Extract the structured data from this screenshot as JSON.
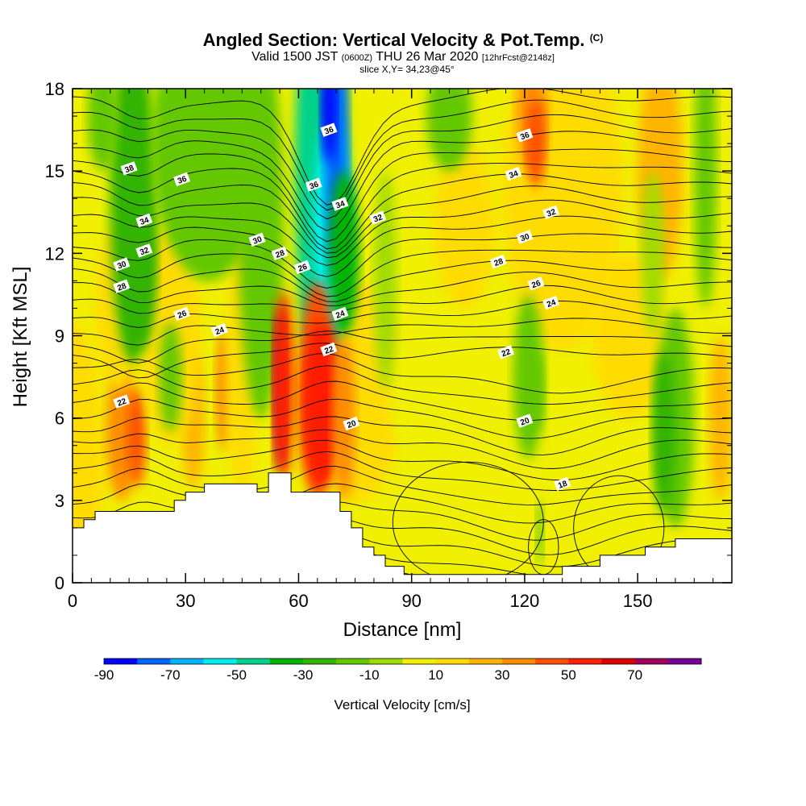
{
  "title": {
    "main": "Angled Section: Vertical Velocity & Pot.Temp.",
    "copyright": "(C)",
    "line2_a": "Valid 1500 JST",
    "line2_b": "(0600Z)",
    "line2_c": "THU 26 Mar 2020",
    "line2_d": "[12hrFcst@2148z]",
    "line3": "slice X,Y= 34,23@45°"
  },
  "chart_data": {
    "type": "heatmap",
    "title": "Angled Section: Vertical Velocity & Pot.Temp.",
    "xlabel": "Distance [nm]",
    "ylabel": "Height [Kft MSL]",
    "xlim": [
      0,
      175
    ],
    "ylim": [
      0,
      18
    ],
    "x_ticks": [
      0,
      30,
      60,
      90,
      120,
      150
    ],
    "y_ticks": [
      0,
      3,
      6,
      9,
      12,
      15,
      18
    ],
    "colorbar": {
      "title": "Vertical Velocity [cm/s]",
      "tick_labels": [
        "-90",
        "-70",
        "-50",
        "-30",
        "-10",
        "10",
        "30",
        "50",
        "70"
      ],
      "levels": [
        -90,
        -80,
        -70,
        -60,
        -50,
        -40,
        -30,
        -20,
        -10,
        0,
        10,
        20,
        30,
        40,
        50,
        60,
        70,
        80
      ],
      "colors": [
        "#0000ff",
        "#0064ff",
        "#00b4ff",
        "#00f0f0",
        "#00d28c",
        "#00b400",
        "#32b400",
        "#64c800",
        "#a0dc00",
        "#f0f000",
        "#ffdc00",
        "#ffb400",
        "#ff8c00",
        "#ff5000",
        "#ff1e00",
        "#dc0000",
        "#a0005a",
        "#780096"
      ]
    },
    "terrain_kft": [
      [
        0,
        2.0
      ],
      [
        3,
        2.0
      ],
      [
        3,
        2.3
      ],
      [
        6,
        2.3
      ],
      [
        6,
        2.6
      ],
      [
        27,
        2.6
      ],
      [
        27,
        3.0
      ],
      [
        30,
        3.0
      ],
      [
        30,
        3.3
      ],
      [
        35,
        3.3
      ],
      [
        35,
        3.6
      ],
      [
        49,
        3.6
      ],
      [
        49,
        3.3
      ],
      [
        52,
        3.3
      ],
      [
        52,
        4.0
      ],
      [
        58,
        4.0
      ],
      [
        58,
        3.3
      ],
      [
        71,
        3.3
      ],
      [
        71,
        2.6
      ],
      [
        74,
        2.6
      ],
      [
        74,
        2.0
      ],
      [
        77,
        2.0
      ],
      [
        77,
        1.3
      ],
      [
        80,
        1.3
      ],
      [
        80,
        1.0
      ],
      [
        83,
        1.0
      ],
      [
        83,
        0.6
      ],
      [
        88,
        0.6
      ],
      [
        88,
        0.3
      ],
      [
        130,
        0.3
      ],
      [
        130,
        0.6
      ],
      [
        140,
        0.6
      ],
      [
        140,
        1.0
      ],
      [
        152,
        1.0
      ],
      [
        152,
        1.3
      ],
      [
        160,
        1.3
      ],
      [
        160,
        1.6
      ],
      [
        175,
        1.6
      ],
      [
        175,
        0
      ],
      [
        0,
        0
      ]
    ],
    "pot_temp_contours": [
      {
        "level": "38",
        "x": 15,
        "y": 15.1
      },
      {
        "level": "36",
        "x": 29,
        "y": 14.7
      },
      {
        "level": "34",
        "x": 19,
        "y": 13.2
      },
      {
        "level": "32",
        "x": 19,
        "y": 12.1
      },
      {
        "level": "30",
        "x": 13,
        "y": 11.6
      },
      {
        "level": "28",
        "x": 13,
        "y": 10.8
      },
      {
        "level": "26",
        "x": 29,
        "y": 9.8
      },
      {
        "level": "24",
        "x": 39,
        "y": 9.2
      },
      {
        "level": "22",
        "x": 13,
        "y": 6.6
      },
      {
        "level": "30",
        "x": 49,
        "y": 12.5
      },
      {
        "level": "28",
        "x": 55,
        "y": 12.0
      },
      {
        "level": "26",
        "x": 61,
        "y": 11.5
      },
      {
        "level": "24",
        "x": 71,
        "y": 9.8
      },
      {
        "level": "22",
        "x": 68,
        "y": 8.5
      },
      {
        "level": "20",
        "x": 74,
        "y": 5.8
      },
      {
        "level": "36",
        "x": 68,
        "y": 16.5
      },
      {
        "level": "36",
        "x": 64,
        "y": 14.5
      },
      {
        "level": "34",
        "x": 71,
        "y": 13.8
      },
      {
        "level": "32",
        "x": 81,
        "y": 13.3
      },
      {
        "level": "36",
        "x": 120,
        "y": 16.3
      },
      {
        "level": "34",
        "x": 117,
        "y": 14.9
      },
      {
        "level": "32",
        "x": 127,
        "y": 13.5
      },
      {
        "level": "30",
        "x": 120,
        "y": 12.6
      },
      {
        "level": "28",
        "x": 113,
        "y": 11.7
      },
      {
        "level": "26",
        "x": 123,
        "y": 10.9
      },
      {
        "level": "24",
        "x": 127,
        "y": 10.2
      },
      {
        "level": "22",
        "x": 115,
        "y": 8.4
      },
      {
        "level": "20",
        "x": 120,
        "y": 5.9
      },
      {
        "level": "18",
        "x": 130,
        "y": 3.6
      }
    ]
  }
}
